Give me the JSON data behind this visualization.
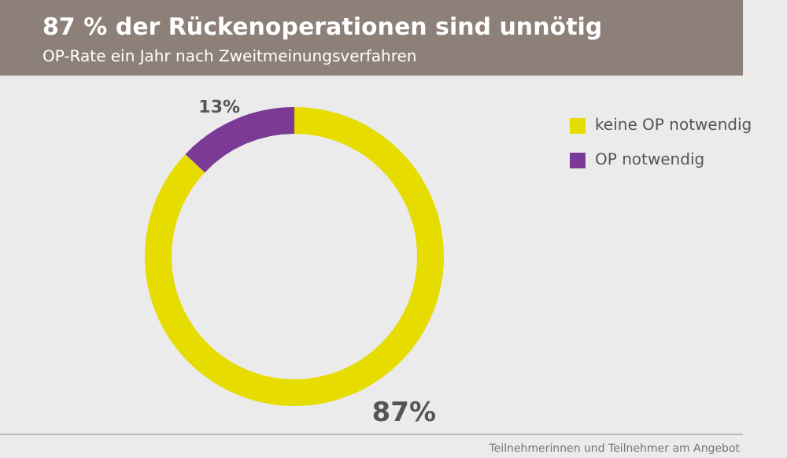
{
  "chart_data": {
    "type": "donut",
    "title": "87 % der Rückenoperationen sind unnötig",
    "subtitle": "OP-Rate ein Jahr nach Zweitmeinungsverfahren",
    "categories": [
      "keine OP notwendig",
      "OP notwendig"
    ],
    "values": [
      87,
      13
    ],
    "colors": [
      "#e6dc00",
      "#7b3a96"
    ],
    "value_labels": [
      "87%",
      "13%"
    ],
    "legend": "right",
    "annotations": [
      "Teilnehmerinnen und Teilnehmer am Angebot"
    ]
  }
}
